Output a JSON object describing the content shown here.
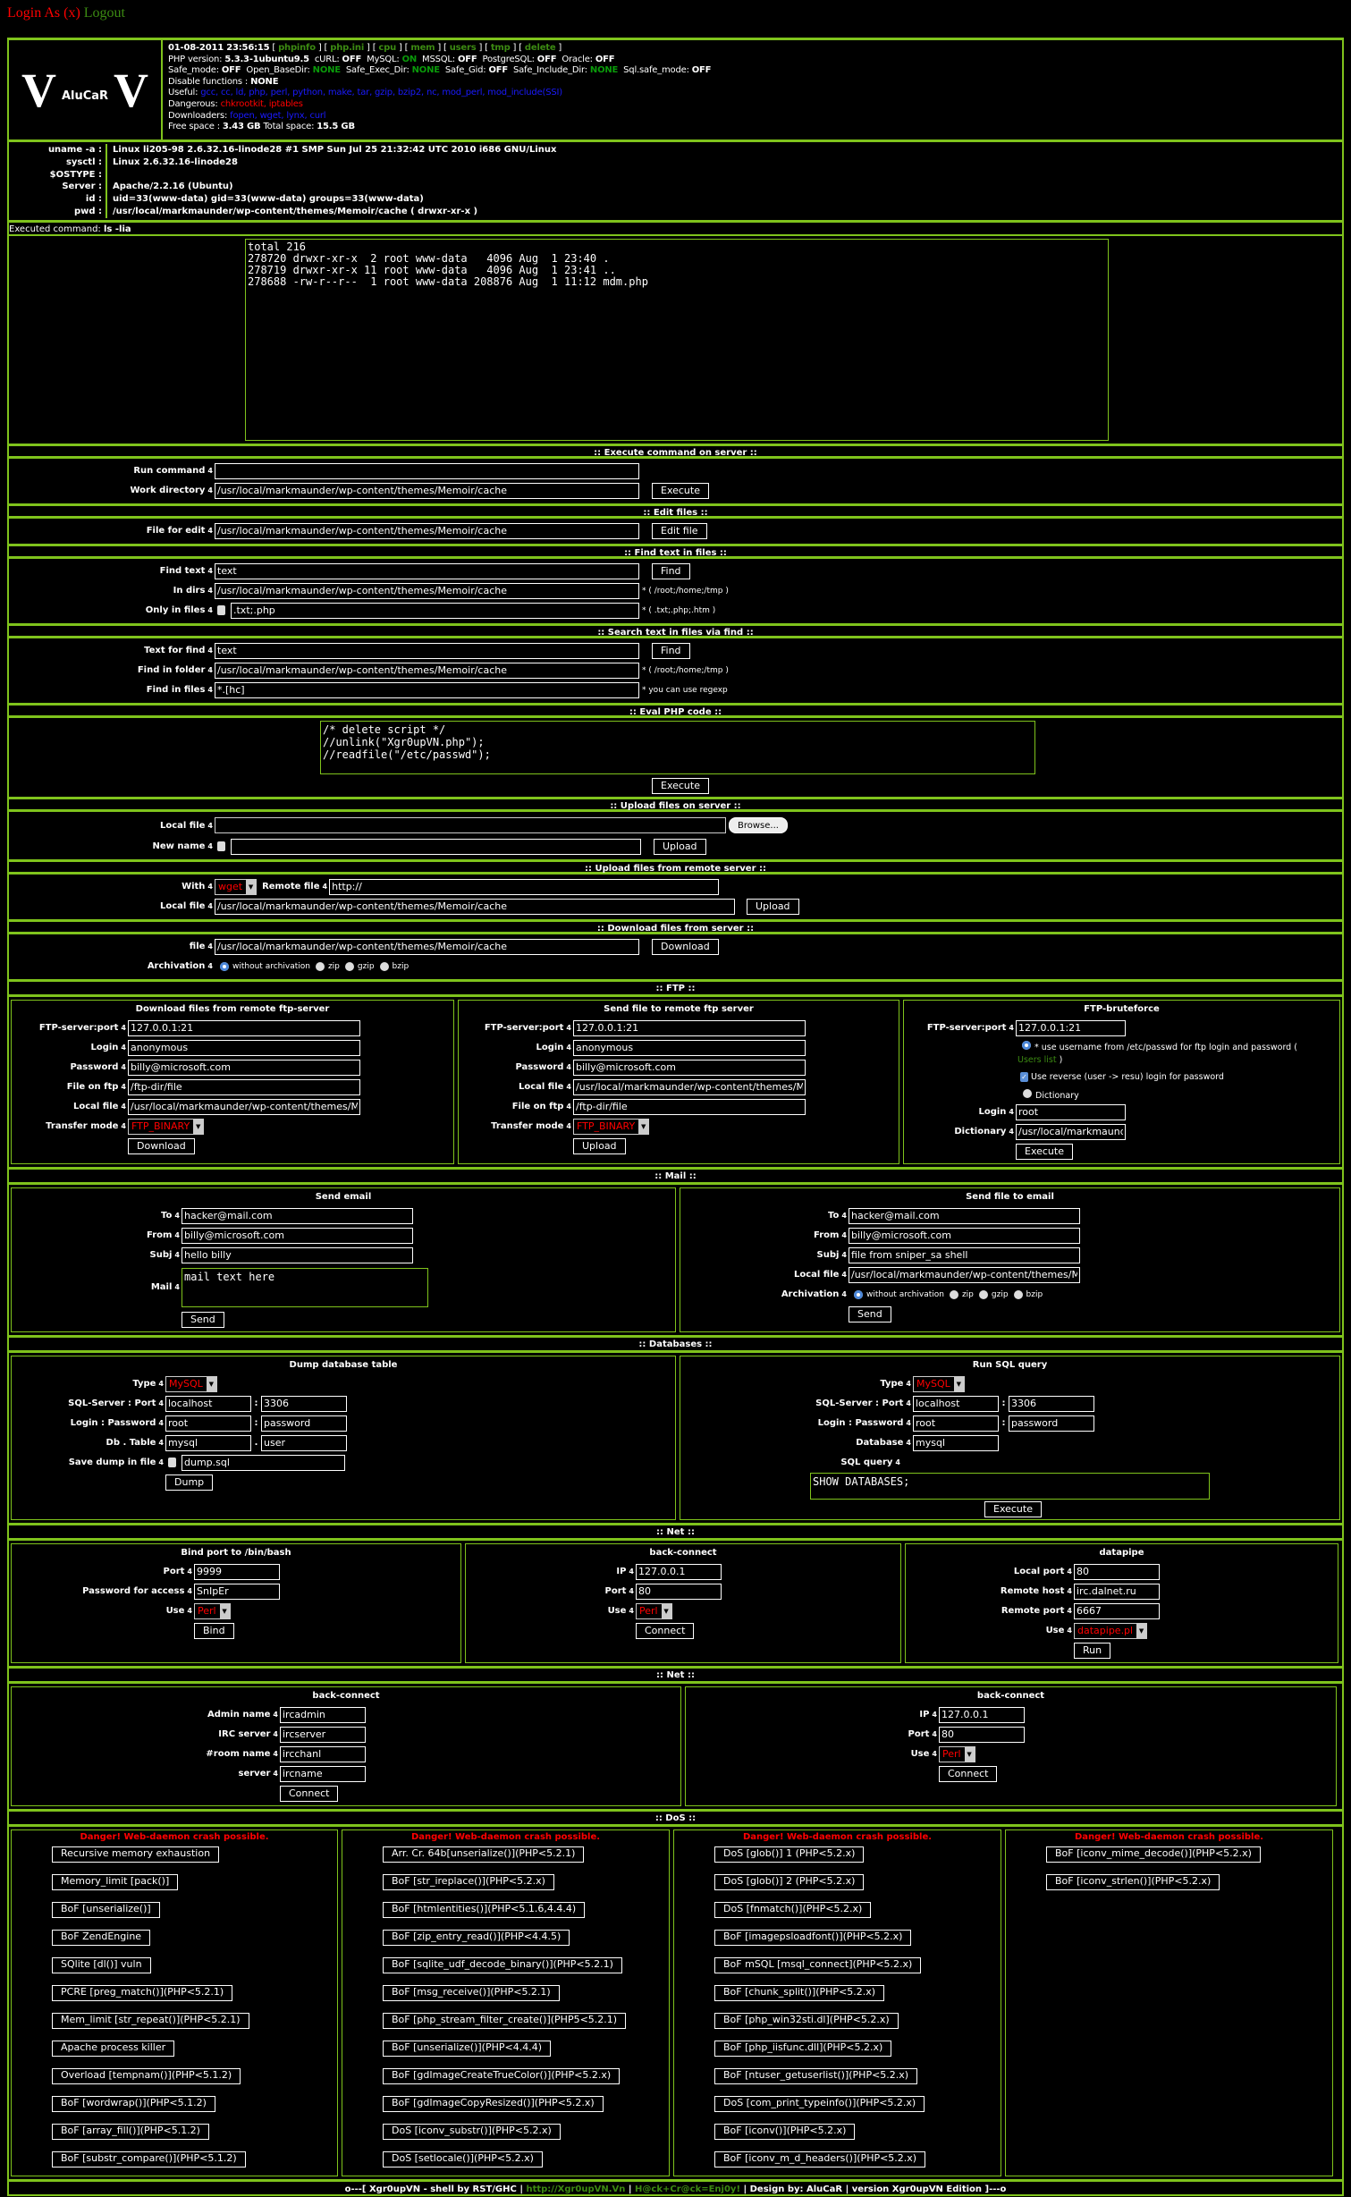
{
  "top": {
    "login": "Login As (x)",
    "logout": "Logout"
  },
  "ui": {
    "arrow": "4",
    "sep_colon": ":",
    "sep_dot": ".",
    "radio_hint": "*"
  },
  "logo": {
    "v": "V",
    "name": "AluCaR"
  },
  "info": {
    "datetime": "01-08-2011 23:56:15",
    "links": [
      "phpinfo",
      "php.ini",
      "cpu",
      "mem",
      "users",
      "tmp",
      "delete"
    ],
    "php_label": "PHP version:",
    "php": "5.3.3-1ubuntu9.5",
    "curl_label": "cURL:",
    "curl": "OFF",
    "mysql_label": "MySQL:",
    "mysql": "ON",
    "mssql_label": "MSSQL:",
    "mssql": "OFF",
    "pg_label": "PostgreSQL:",
    "pg": "OFF",
    "oracle_label": "Oracle:",
    "oracle": "OFF",
    "safe_mode_label": "Safe_mode:",
    "safe_mode": "OFF",
    "open_basedir_label": "Open_BaseDir:",
    "open_basedir": "NONE",
    "safe_exec_label": "Safe_Exec_Dir:",
    "safe_exec": "NONE",
    "safe_gid_label": "Safe_Gid:",
    "safe_gid": "OFF",
    "safe_include_label": "Safe_Include_Dir:",
    "safe_include": "NONE",
    "sql_safe_label": "Sql.safe_mode:",
    "sql_safe": "OFF",
    "disable_label": "Disable functions :",
    "disable": "NONE",
    "useful_label": "Useful:",
    "useful": "gcc, cc, ld, php, perl, python, make, tar, gzip, bzip2, nc, mod_perl, mod_include(SSI)",
    "dangerous_label": "Dangerous:",
    "dangerous": "chkrootkit, iptables",
    "downloaders_label": "Downloaders:",
    "downloaders": "fopen, wget, lynx, curl",
    "free_label": "Free space :",
    "free": "3.43 GB",
    "total_label": "Total space:",
    "total": "15.5 GB"
  },
  "sys": [
    {
      "label": "uname -a :",
      "value": "Linux li205-98 2.6.32.16-linode28 #1 SMP Sun Jul 25 21:32:42 UTC 2010 i686 GNU/Linux"
    },
    {
      "label": "sysctl :",
      "value": "Linux 2.6.32.16-linode28"
    },
    {
      "label": "$OSTYPE :",
      "value": ""
    },
    {
      "label": "Server :",
      "value": "Apache/2.2.16 (Ubuntu)"
    },
    {
      "label": "id :",
      "value": "uid=33(www-data) gid=33(www-data) groups=33(www-data)"
    },
    {
      "label": "pwd :",
      "value": "/usr/local/markmaunder/wp-content/themes/Memoir/cache   ( drwxr-xr-x )"
    }
  ],
  "executed": {
    "label": "Executed command:",
    "cmd": "ls -lia",
    "output": "total 216\n278720 drwxr-xr-x  2 root www-data   4096 Aug  1 23:40 .\n278719 drwxr-xr-x 11 root www-data   4096 Aug  1 23:41 ..\n278688 -rw-r--r--  1 root www-data 208876 Aug  1 11:12 mdm.php"
  },
  "exec": {
    "title": ":: Execute command on server ::",
    "run_label": "Run command",
    "run": "",
    "dir_label": "Work directory",
    "dir": "/usr/local/markmaunder/wp-content/themes/Memoir/cache",
    "button": "Execute"
  },
  "edit": {
    "title": ":: Edit files ::",
    "label": "File for edit",
    "value": "/usr/local/markmaunder/wp-content/themes/Memoir/cache",
    "button": "Edit file"
  },
  "findtext": {
    "title": ":: Find text in files ::",
    "text_label": "Find text",
    "text": "text",
    "button": "Find",
    "dirs_label": "In dirs",
    "dirs": "/usr/local/markmaunder/wp-content/themes/Memoir/cache",
    "dirs_note": "* ( /root;/home;/tmp )",
    "only_label": "Only in files",
    "only": ".txt;.php",
    "only_note": "* ( .txt;.php;.htm )"
  },
  "findvia": {
    "title": ":: Search text in files via find ::",
    "text_label": "Text for find",
    "text": "text",
    "button": "Find",
    "folder_label": "Find in folder",
    "folder": "/usr/local/markmaunder/wp-content/themes/Memoir/cache",
    "folder_note": "* ( /root;/home;/tmp )",
    "files_label": "Find in files",
    "files": "*.[hc]",
    "files_note": "* you can use regexp"
  },
  "eval": {
    "title": ":: Eval PHP code ::",
    "code": "/* delete script */\n//unlink(\"Xgr0upVN.php\");\n//readfile(\"/etc/passwd\");",
    "button": "Execute"
  },
  "upload": {
    "title": ":: Upload files on server ::",
    "local_label": "Local file",
    "local": "",
    "browse": "Browse...",
    "newname_label": "New name",
    "newname": "",
    "button": "Upload"
  },
  "remote": {
    "title": ":: Upload files from remote server ::",
    "with_label": "With",
    "with": "wget",
    "remote_label": "Remote file",
    "remote": "http://",
    "local_label": "Local file",
    "local": "/usr/local/markmaunder/wp-content/themes/Memoir/cache",
    "button": "Upload"
  },
  "download": {
    "title": ":: Download files from server ::",
    "file_label": "file",
    "file": "/usr/local/markmaunder/wp-content/themes/Memoir/cache",
    "button": "Download",
    "arch_label": "Archivation",
    "arch_options": [
      "without archivation",
      "zip",
      "gzip",
      "bzip"
    ],
    "arch_selected": "without archivation"
  },
  "ftp": {
    "title": ":: FTP ::",
    "get": {
      "title": "Download files from remote ftp-server",
      "server_label": "FTP-server:port",
      "server": "127.0.0.1:21",
      "login_label": "Login",
      "login": "anonymous",
      "pass_label": "Password",
      "pass": "billy@microsoft.com",
      "ftpfile_label": "File on ftp",
      "ftpfile": "/ftp-dir/file",
      "local_label": "Local file",
      "local": "/usr/local/markmaunder/wp-content/themes/Memoir/cache",
      "mode_label": "Transfer mode",
      "mode": "FTP_BINARY",
      "button": "Download"
    },
    "send": {
      "title": "Send file to remote ftp server",
      "server_label": "FTP-server:port",
      "server": "127.0.0.1:21",
      "login_label": "Login",
      "login": "anonymous",
      "pass_label": "Password",
      "pass": "billy@microsoft.com",
      "local_label": "Local file",
      "local": "/usr/local/markmaunder/wp-content/themes/Memoir/cache",
      "ftpfile_label": "File on ftp",
      "ftpfile": "/ftp-dir/file",
      "mode_label": "Transfer mode",
      "mode": "FTP_BINARY",
      "button": "Upload"
    },
    "brute": {
      "title": "FTP-bruteforce",
      "server_label": "FTP-server:port",
      "server": "127.0.0.1:21",
      "opt1": "use username from /etc/passwd for ftp login and password (",
      "users_link": "Users list",
      "opt1_end": ")",
      "reverse": "Use reverse (user -> resu) login for password",
      "reverse_checked": true,
      "dict_opt": "Dictionary",
      "login_label": "Login",
      "login": "root",
      "dict_label": "Dictionary",
      "dict": "/usr/local/markmaunder/wp-content/themes/Memoir/cache",
      "button": "Execute"
    }
  },
  "mail": {
    "title": ":: Mail ::",
    "send": {
      "title": "Send email",
      "to_label": "To",
      "to": "hacker@mail.com",
      "from_label": "From",
      "from": "billy@microsoft.com",
      "subj_label": "Subj",
      "subj": "hello billy",
      "mail_label": "Mail",
      "mail": "mail text here",
      "button": "Send"
    },
    "file": {
      "title": "Send file to email",
      "to_label": "To",
      "to": "hacker@mail.com",
      "from_label": "From",
      "from": "billy@microsoft.com",
      "subj_label": "Subj",
      "subj": "file from sniper_sa shell",
      "local_label": "Local file",
      "local": "/usr/local/markmaunder/wp-content/themes/Memoir/cache",
      "arch_label": "Archivation",
      "arch_options": [
        "without archivation",
        "zip",
        "gzip",
        "bzip"
      ],
      "arch_selected": "without archivation",
      "button": "Send"
    }
  },
  "db": {
    "title": ":: Databases ::",
    "dump": {
      "title": "Dump database table",
      "type_label": "Type",
      "type": "MySQL",
      "server_label": "SQL-Server : Port",
      "server": "localhost",
      "port": "3306",
      "login_label": "Login : Password",
      "login": "root",
      "pass": "password",
      "dbtable_label": "Db . Table",
      "db": "mysql",
      "table": "user",
      "save_label": "Save dump in file",
      "save": "dump.sql",
      "button": "Dump"
    },
    "query": {
      "title": "Run SQL query",
      "type_label": "Type",
      "type": "MySQL",
      "server_label": "SQL-Server : Port",
      "server": "localhost",
      "port": "3306",
      "login_label": "Login : Password",
      "login": "root",
      "pass": "password",
      "database_label": "Database",
      "database": "mysql",
      "query_label": "SQL query",
      "query": "SHOW DATABASES;",
      "button": "Execute"
    }
  },
  "net1": {
    "title": ":: Net ::",
    "bind": {
      "title": "Bind port to /bin/bash",
      "port_label": "Port",
      "port": "9999",
      "pass_label": "Password for access",
      "pass": "SnIpEr",
      "use_label": "Use",
      "use": "Perl",
      "button": "Bind"
    },
    "back": {
      "title": "back-connect",
      "ip_label": "IP",
      "ip": "127.0.0.1",
      "port_label": "Port",
      "port": "80",
      "use_label": "Use",
      "use": "Perl",
      "button": "Connect"
    },
    "pipe": {
      "title": "datapipe",
      "lport_label": "Local port",
      "lport": "80",
      "rhost_label": "Remote host",
      "rhost": "irc.dalnet.ru",
      "rport_label": "Remote port",
      "rport": "6667",
      "use_label": "Use",
      "use": "datapipe.pl",
      "button": "Run"
    }
  },
  "net2": {
    "title": ":: Net ::",
    "irc": {
      "title": "back-connect",
      "admin_label": "Admin name",
      "admin": "ircadmin",
      "server_label": "IRC server",
      "server": "ircserver",
      "room_label": "#room name",
      "room": "ircchanl",
      "name_label": "server",
      "name": "ircname",
      "button": "Connect"
    },
    "back": {
      "title": "back-connect",
      "ip_label": "IP",
      "ip": "127.0.0.1",
      "port_label": "Port",
      "port": "80",
      "use_label": "Use",
      "use": "Perl",
      "button": "Connect"
    }
  },
  "dos": {
    "title": ":: DoS ::",
    "warning": "Danger! Web-daemon crash possible.",
    "columns": [
      [
        "Recursive memory exhaustion",
        "Memory_limit [pack()]",
        "BoF [unserialize()]",
        "BoF ZendEngine",
        "SQlite [dl()] vuln",
        "PCRE [preg_match()](PHP<5.2.1)",
        "Mem_limit [str_repeat()](PHP<5.2.1)",
        "Apache process killer",
        "Overload [tempnam()](PHP<5.1.2)",
        "BoF [wordwrap()](PHP<5.1.2)",
        "BoF [array_fill()](PHP<5.1.2)",
        "BoF [substr_compare()](PHP<5.1.2)"
      ],
      [
        "Arr. Cr. 64b[unserialize()](PHP<5.2.1)",
        "BoF [str_ireplace()](PHP<5.2.x)",
        "BoF [htmlentities()](PHP<5.1.6,4.4.4)",
        "BoF [zip_entry_read()](PHP<4.4.5)",
        "BoF [sqlite_udf_decode_binary()](PHP<5.2.1)",
        "BoF [msg_receive()](PHP<5.2.1)",
        "BoF [php_stream_filter_create()](PHP5<5.2.1)",
        "BoF [unserialize()](PHP<4.4.4)",
        "BoF [gdImageCreateTrueColor()](PHP<5.2.x)",
        "BoF [gdImageCopyResized()](PHP<5.2.x)",
        "DoS [iconv_substr()](PHP<5.2.x)",
        "DoS [setlocale()](PHP<5.2.x)"
      ],
      [
        "DoS [glob()] 1 (PHP<5.2.x)",
        "DoS [glob()] 2 (PHP<5.2.x)",
        "DoS [fnmatch()](PHP<5.2.x)",
        "BoF [imagepsloadfont()](PHP<5.2.x)",
        "BoF mSQL [msql_connect](PHP<5.2.x)",
        "BoF [chunk_split()](PHP<5.2.x)",
        "BoF [php_win32sti.dl](PHP<5.2.x)",
        "BoF [php_iisfunc.dll](PHP<5.2.x)",
        "BoF [ntuser_getuserlist()](PHP<5.2.x)",
        "DoS [com_print_typeinfo()](PHP<5.2.x)",
        "BoF [iconv()](PHP<5.2.x)",
        "BoF [iconv_m_d_headers()](PHP<5.2.x)"
      ],
      [
        "BoF [iconv_mime_decode()](PHP<5.2.x)",
        "BoF [iconv_strlen()](PHP<5.2.x)"
      ]
    ]
  },
  "footer": {
    "pre": "o---[ Xgr0upVN - shell by RST/GHC |",
    "url": "http://Xgr0upVN.Vn",
    "sep": "|",
    "slogan": "H@ck+Cr@ck=Enj0y!",
    "post": "| Design by: AluCaR | version Xgr0upVN Edition ]---o"
  },
  "colors": {
    "border": "#7fc31c",
    "link": "#3c8a12",
    "on": "#0a9a0a",
    "useful": "#1a1aff",
    "danger": "#ff0000"
  }
}
